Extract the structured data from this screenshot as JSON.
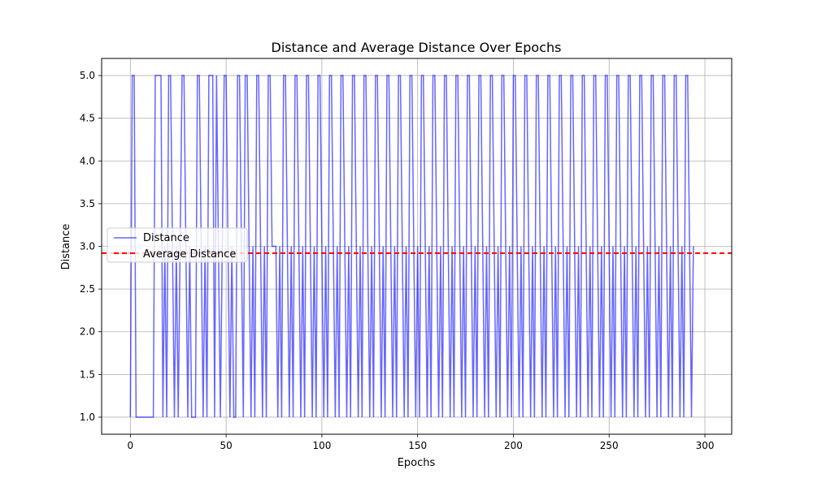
{
  "chart_data": {
    "type": "line",
    "title": "Distance and Average Distance Over Epochs",
    "xlabel": "Epochs",
    "ylabel": "Distance",
    "xlim": [
      -15,
      314
    ],
    "ylim": [
      0.8,
      5.2
    ],
    "xticks": [
      0,
      50,
      100,
      150,
      200,
      250,
      300
    ],
    "yticks": [
      1.0,
      1.5,
      2.0,
      2.5,
      3.0,
      3.5,
      4.0,
      4.5,
      5.0
    ],
    "xtick_labels": [
      "0",
      "50",
      "100",
      "150",
      "200",
      "250",
      "300"
    ],
    "ytick_labels": [
      "1.0",
      "1.5",
      "2.0",
      "2.5",
      "3.0",
      "3.5",
      "4.0",
      "4.5",
      "5.0"
    ],
    "grid": true,
    "legend_position": "center-left",
    "series": [
      {
        "name": "Distance",
        "color": "#0000ff",
        "style": "solid",
        "pattern": [
          1,
          5,
          5,
          1,
          1,
          1,
          1,
          1,
          1,
          1,
          1,
          1,
          1,
          5,
          5,
          5,
          5,
          1,
          3,
          1,
          5,
          5,
          3,
          1,
          3,
          1,
          3,
          5,
          5,
          3,
          1,
          3,
          1,
          1,
          1,
          5,
          5,
          3,
          1,
          3,
          1,
          5,
          5,
          5,
          1,
          5,
          3,
          1,
          3,
          5,
          5,
          3,
          1,
          3,
          1,
          1,
          5,
          5,
          3,
          1,
          5,
          5,
          3,
          1,
          3,
          1,
          5,
          5,
          3,
          1,
          3,
          1,
          5,
          5,
          3,
          3,
          3,
          1,
          3,
          1,
          5,
          5,
          3,
          1,
          3,
          1,
          5,
          5,
          3,
          1,
          3,
          1,
          5,
          5,
          3,
          1,
          3,
          1,
          5,
          5,
          3,
          1,
          3,
          1,
          5,
          5,
          3,
          1,
          3,
          1,
          5,
          5,
          3,
          1,
          3,
          1,
          5,
          5,
          3,
          1,
          3,
          1,
          5,
          5,
          3,
          1,
          3,
          1,
          5,
          5,
          3,
          1,
          3,
          1,
          5,
          5,
          3,
          1,
          3,
          1,
          5,
          5,
          3,
          1,
          3,
          1,
          5,
          5,
          3,
          1,
          3,
          1,
          5,
          5,
          3,
          1,
          3,
          1,
          5,
          5,
          3,
          1,
          3,
          1,
          5,
          5,
          3,
          1,
          3,
          1,
          5,
          5,
          3,
          1,
          3,
          1,
          5,
          5,
          3,
          1,
          3,
          1,
          5,
          5,
          3,
          1,
          3,
          1,
          5,
          5,
          3,
          1,
          3,
          1,
          5,
          5,
          3,
          1,
          3,
          1,
          5,
          5,
          3,
          1,
          3,
          1,
          5,
          5,
          3,
          1,
          3,
          1,
          5,
          5,
          3,
          1,
          3,
          1,
          5,
          5,
          3,
          1,
          3,
          1,
          5,
          5,
          3,
          1,
          3,
          1,
          5,
          5,
          3,
          1,
          3,
          1,
          5,
          5,
          3,
          1,
          3,
          1,
          5,
          5,
          3,
          1,
          3,
          1,
          5,
          5,
          3,
          1,
          3,
          1,
          5,
          5,
          3,
          1,
          3,
          1,
          5,
          5,
          3,
          1,
          3,
          1,
          5,
          5,
          3,
          1,
          3,
          1,
          5,
          5,
          3,
          1,
          3,
          1,
          5,
          5,
          3,
          1,
          3,
          1,
          5,
          5,
          3,
          1,
          3,
          1,
          5,
          5,
          3,
          1,
          3
        ]
      },
      {
        "name": "Average Distance",
        "color": "#ff0000",
        "style": "dashed",
        "value": 2.92
      }
    ]
  }
}
